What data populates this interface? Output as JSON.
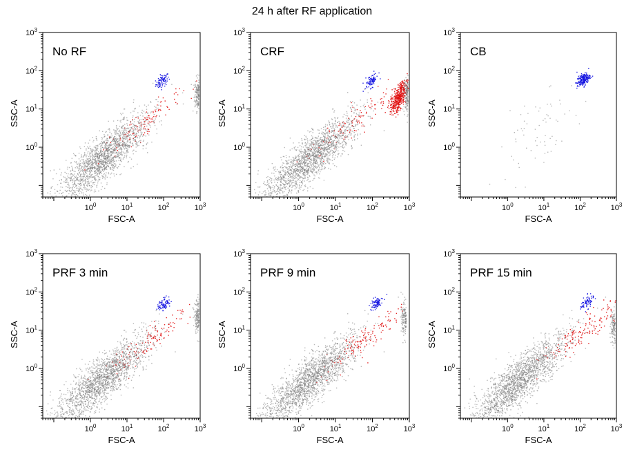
{
  "title": "24 h after RF application",
  "colors": {
    "other": "#7a7a7a",
    "debris": "#555555",
    "population_blue": "#1010e0",
    "population_red": "#e01010",
    "axis": "#000000"
  },
  "chart_data": [
    {
      "type": "scatter",
      "panel_label": "No RF",
      "xlabel": "FSC-A",
      "ylabel": "SSC-A",
      "log_scale": true,
      "xlim": [
        0.05,
        1000
      ],
      "ylim": [
        0.05,
        1000
      ],
      "x_ticks": [
        "10^0",
        "10^1",
        "10^2",
        "10^3"
      ],
      "y_ticks": [
        "10^0",
        "10^1",
        "10^2",
        "10^3"
      ],
      "clusters": [
        {
          "color": "blue",
          "center": [
            90,
            55
          ],
          "count": 80
        },
        {
          "color": "gray",
          "center": [
            900,
            25
          ],
          "count": 140,
          "note": "dense cluster at right edge"
        },
        {
          "color": "red",
          "center": [
            25,
            4
          ],
          "count": 120,
          "note": "diagonal scatter"
        },
        {
          "color": "gray",
          "center": [
            2,
            0.5
          ],
          "count": 1800,
          "note": "main diagonal distribution"
        }
      ]
    },
    {
      "type": "scatter",
      "panel_label": "CRF",
      "xlabel": "FSC-A",
      "ylabel": "SSC-A",
      "log_scale": true,
      "xlim": [
        0.05,
        1000
      ],
      "ylim": [
        0.05,
        1000
      ],
      "x_ticks": [
        "10^0",
        "10^1",
        "10^2",
        "10^3"
      ],
      "y_ticks": [
        "10^0",
        "10^1",
        "10^2",
        "10^3"
      ],
      "clusters": [
        {
          "color": "blue",
          "center": [
            90,
            55
          ],
          "count": 80
        },
        {
          "color": "red",
          "center": [
            500,
            20
          ],
          "count": 420,
          "note": "dense red cluster"
        },
        {
          "color": "gray",
          "center": [
            900,
            25
          ],
          "count": 140
        },
        {
          "color": "red",
          "center": [
            30,
            5
          ],
          "count": 110
        },
        {
          "color": "gray",
          "center": [
            2,
            0.5
          ],
          "count": 1800
        }
      ]
    },
    {
      "type": "scatter",
      "panel_label": "CB",
      "xlabel": "FSC-A",
      "ylabel": "SSC-A",
      "log_scale": true,
      "xlim": [
        0.05,
        1000
      ],
      "ylim": [
        0.05,
        1000
      ],
      "x_ticks": [
        "10^0",
        "10^1",
        "10^2",
        "10^3"
      ],
      "y_ticks": [
        "10^0",
        "10^1",
        "10^2",
        "10^3"
      ],
      "clusters": [
        {
          "color": "blue",
          "center": [
            120,
            60
          ],
          "count": 180
        },
        {
          "color": "gray",
          "center": [
            5,
            2
          ],
          "count": 70,
          "note": "sparse diagonal"
        }
      ]
    },
    {
      "type": "scatter",
      "panel_label": "PRF 3 min",
      "xlabel": "FSC-A",
      "ylabel": "SSC-A",
      "log_scale": true,
      "xlim": [
        0.05,
        1000
      ],
      "ylim": [
        0.05,
        1000
      ],
      "x_ticks": [
        "10^0",
        "10^1",
        "10^2",
        "10^3"
      ],
      "y_ticks": [
        "10^0",
        "10^1",
        "10^2",
        "10^3"
      ],
      "clusters": [
        {
          "color": "blue",
          "center": [
            100,
            50
          ],
          "count": 80
        },
        {
          "color": "gray",
          "center": [
            900,
            25
          ],
          "count": 140
        },
        {
          "color": "red",
          "center": [
            40,
            5
          ],
          "count": 130
        },
        {
          "color": "gray",
          "center": [
            2,
            0.5
          ],
          "count": 1800
        }
      ]
    },
    {
      "type": "scatter",
      "panel_label": "PRF 9 min",
      "xlabel": "FSC-A",
      "ylabel": "SSC-A",
      "log_scale": true,
      "xlim": [
        0.05,
        1000
      ],
      "ylim": [
        0.05,
        1000
      ],
      "x_ticks": [
        "10^0",
        "10^1",
        "10^2",
        "10^3"
      ],
      "y_ticks": [
        "10^0",
        "10^1",
        "10^2",
        "10^3"
      ],
      "clusters": [
        {
          "color": "blue",
          "center": [
            120,
            50
          ],
          "count": 80
        },
        {
          "color": "gray",
          "center": [
            800,
            20
          ],
          "count": 140
        },
        {
          "color": "red",
          "center": [
            60,
            6
          ],
          "count": 140
        },
        {
          "color": "gray",
          "center": [
            2,
            0.5
          ],
          "count": 1800
        }
      ]
    },
    {
      "type": "scatter",
      "panel_label": "PRF 15 min",
      "xlabel": "FSC-A",
      "ylabel": "SSC-A",
      "log_scale": true,
      "xlim": [
        0.05,
        1000
      ],
      "ylim": [
        0.05,
        1000
      ],
      "x_ticks": [
        "10^0",
        "10^1",
        "10^2",
        "10^3"
      ],
      "y_ticks": [
        "10^0",
        "10^1",
        "10^2",
        "10^3"
      ],
      "clusters": [
        {
          "color": "blue",
          "center": [
            150,
            55
          ],
          "count": 70
        },
        {
          "color": "gray",
          "center": [
            900,
            12
          ],
          "count": 120
        },
        {
          "color": "red",
          "center": [
            120,
            10
          ],
          "count": 160
        },
        {
          "color": "gray",
          "center": [
            2,
            0.5
          ],
          "count": 1800
        }
      ]
    }
  ]
}
